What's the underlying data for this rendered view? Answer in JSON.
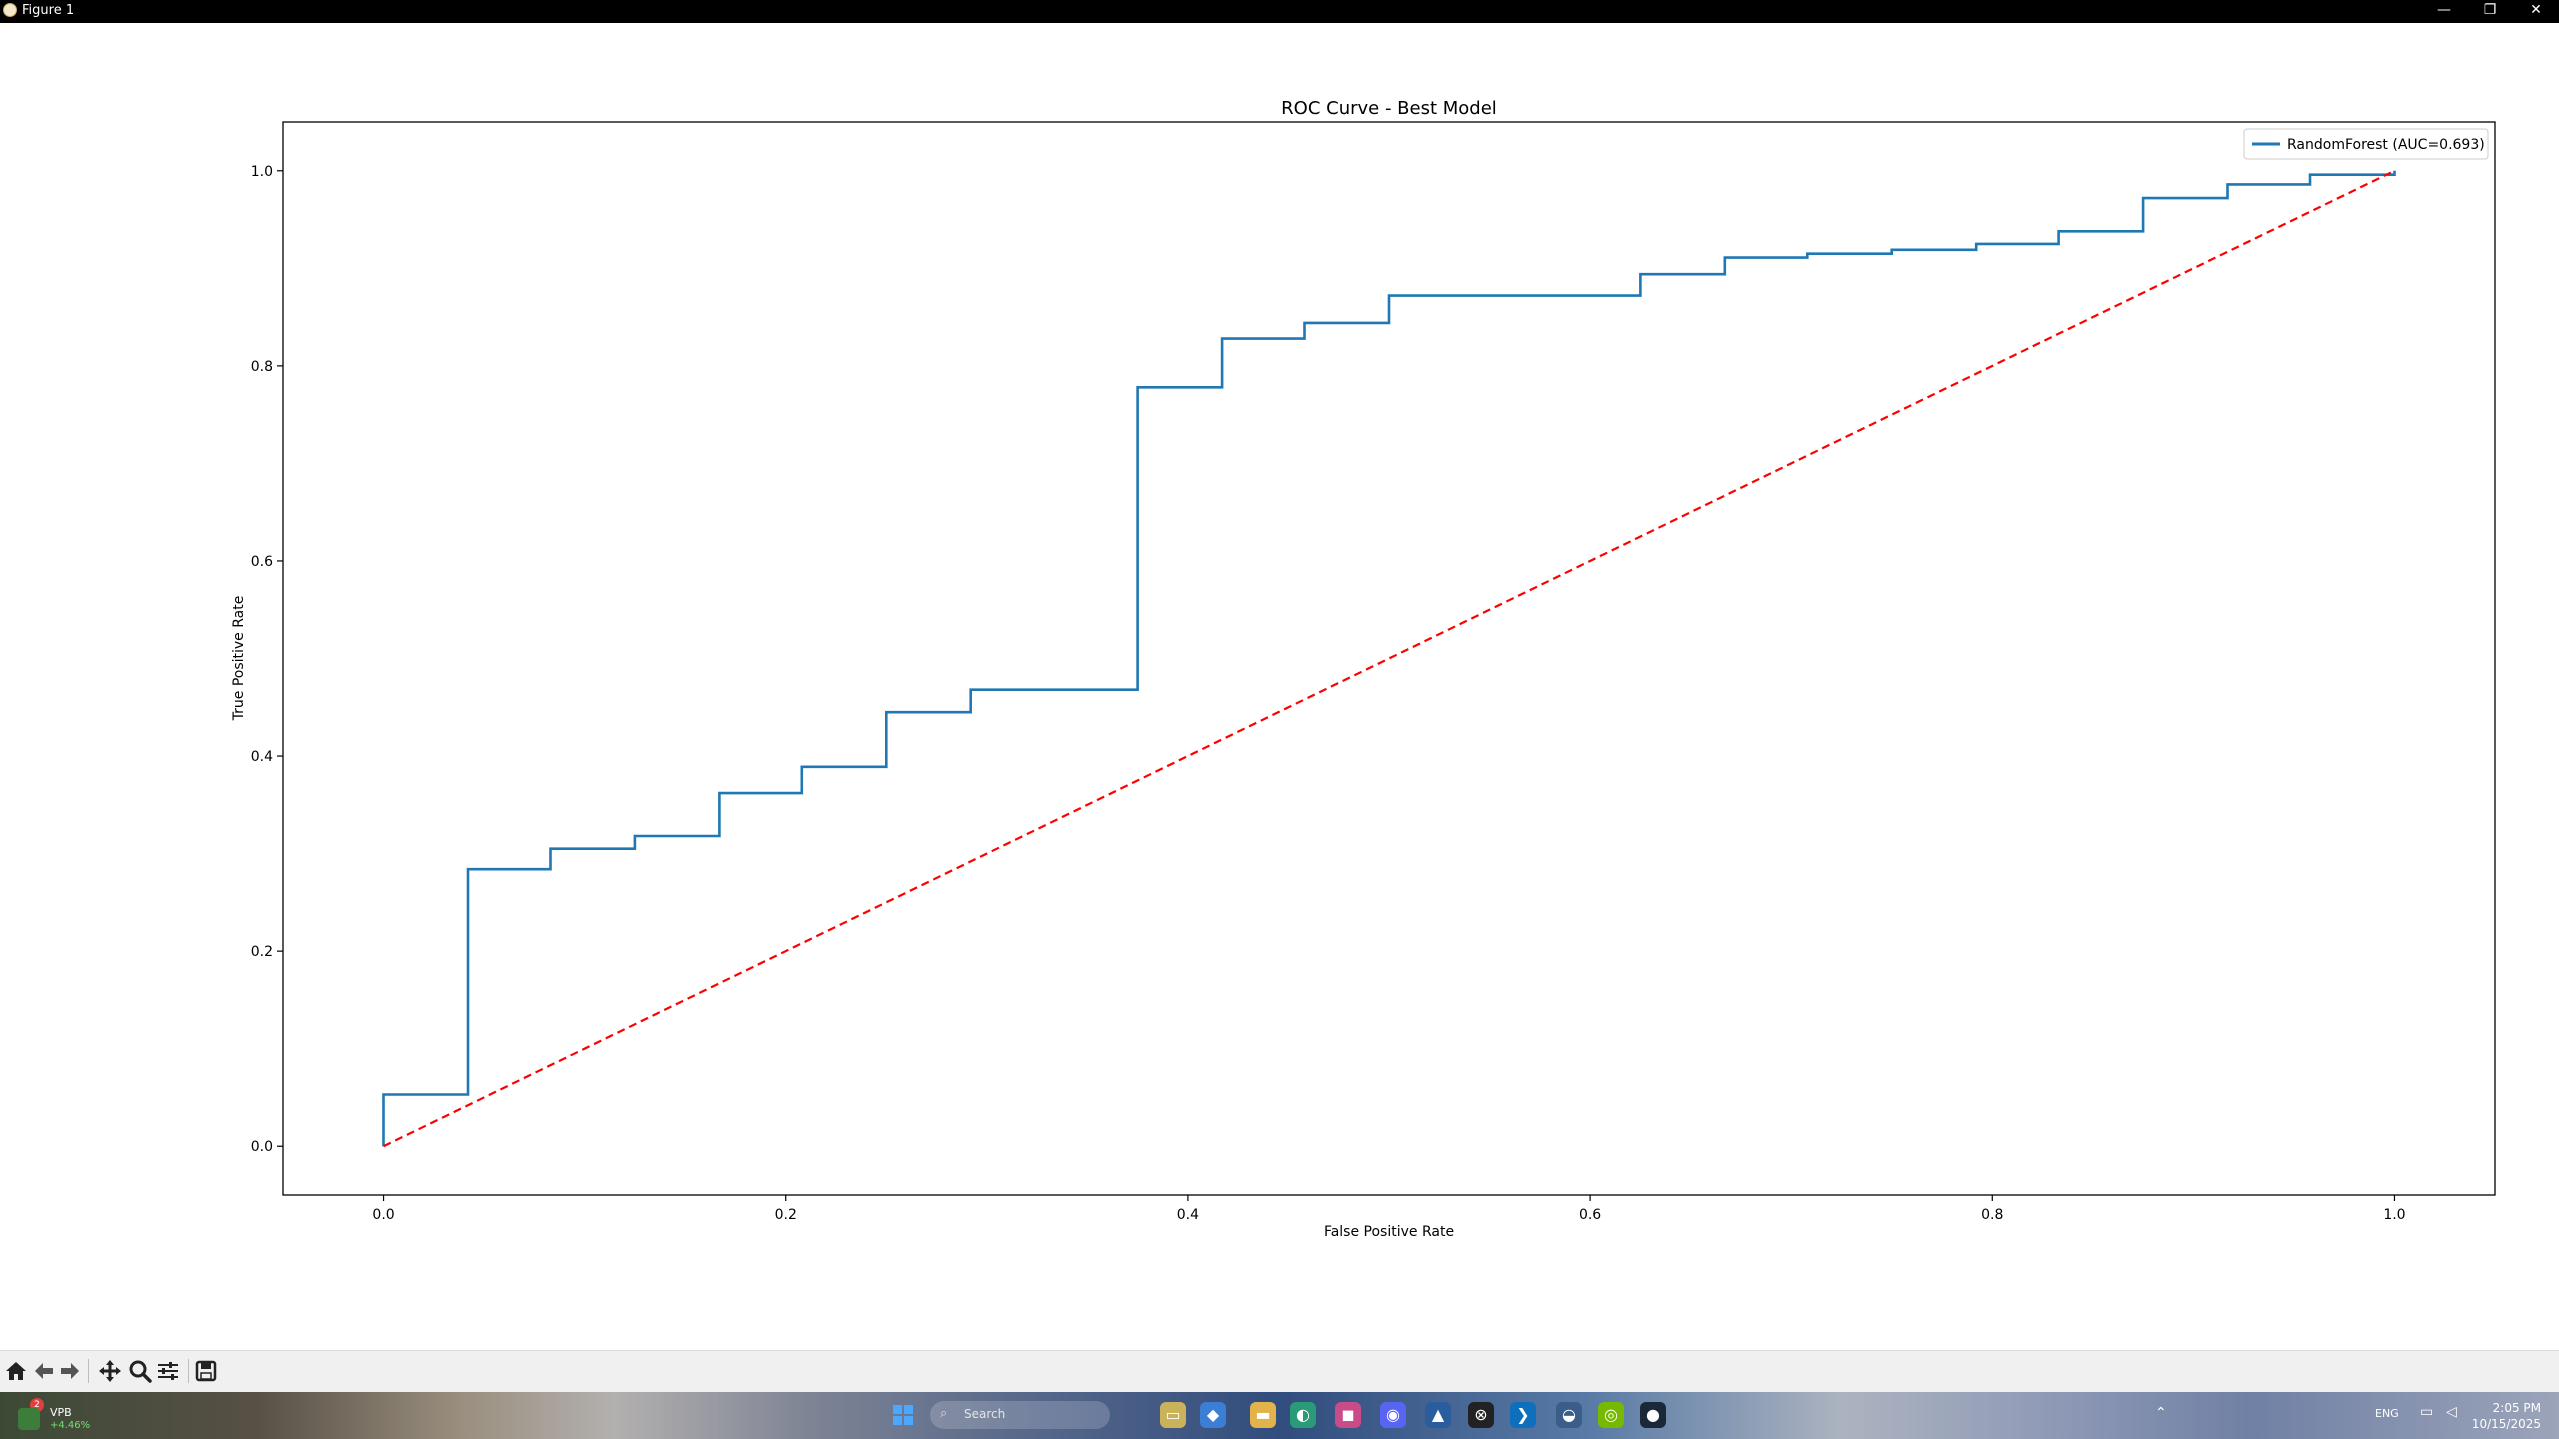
{
  "window": {
    "title": "Figure 1",
    "minimize_glyph": "—",
    "maximize_glyph": "❐",
    "close_glyph": "✕"
  },
  "chart_data": {
    "type": "line",
    "title": "ROC Curve - Best Model",
    "xlabel": "False Positive Rate",
    "ylabel": "True Positive Rate",
    "xlim": [
      -0.05,
      1.05
    ],
    "ylim": [
      -0.05,
      1.05
    ],
    "xticks": [
      "0.0",
      "0.2",
      "0.4",
      "0.6",
      "0.8",
      "1.0"
    ],
    "yticks": [
      "0.0",
      "0.2",
      "0.4",
      "0.6",
      "0.8",
      "1.0"
    ],
    "legend_position": "top-right",
    "grid": false,
    "series": [
      {
        "name": "RandomForest (AUC=0.693)",
        "color": "#1f77b4",
        "style": "step",
        "x": [
          0.0,
          0.0,
          0.042,
          0.042,
          0.083,
          0.083,
          0.125,
          0.125,
          0.167,
          0.167,
          0.208,
          0.208,
          0.25,
          0.25,
          0.292,
          0.292,
          0.375,
          0.375,
          0.417,
          0.417,
          0.458,
          0.458,
          0.5,
          0.5,
          0.625,
          0.625,
          0.667,
          0.667,
          0.708,
          0.708,
          0.75,
          0.75,
          0.792,
          0.792,
          0.833,
          0.833,
          0.875,
          0.875,
          0.917,
          0.917,
          0.958,
          0.958,
          1.0,
          1.0
        ],
        "y": [
          0.0,
          0.053,
          0.053,
          0.284,
          0.284,
          0.305,
          0.305,
          0.318,
          0.318,
          0.362,
          0.362,
          0.389,
          0.389,
          0.445,
          0.445,
          0.468,
          0.468,
          0.778,
          0.778,
          0.828,
          0.828,
          0.844,
          0.844,
          0.872,
          0.872,
          0.894,
          0.894,
          0.911,
          0.911,
          0.915,
          0.915,
          0.919,
          0.919,
          0.925,
          0.925,
          0.938,
          0.938,
          0.972,
          0.972,
          0.986,
          0.986,
          0.996,
          0.996,
          1.0
        ]
      },
      {
        "name": "",
        "color": "#ff0000",
        "style": "dashed",
        "x": [
          0.0,
          1.0
        ],
        "y": [
          0.0,
          1.0
        ]
      }
    ]
  },
  "toolbar": {
    "items": [
      "home-icon",
      "back-icon",
      "forward-icon",
      "pan-icon",
      "zoom-icon",
      "configure-subplots-icon",
      "save-icon"
    ]
  },
  "taskbar": {
    "widget_label": "VPB",
    "widget_change": "+4.46%",
    "widget_badge": "2",
    "search_placeholder": "Search",
    "language": "ENG",
    "time": "2:05 PM",
    "date": "10/15/2025"
  }
}
